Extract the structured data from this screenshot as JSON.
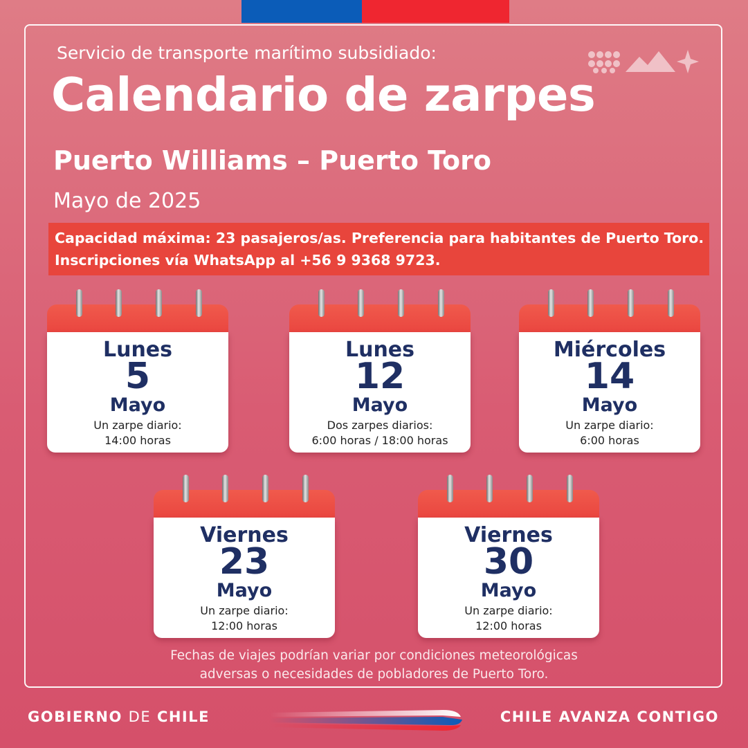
{
  "header": {
    "subtitle": "Servicio de transporte marítimo subsidiado:",
    "title": "Calendario de zarpes",
    "route": "Puerto Williams – Puerto Toro",
    "month": "Mayo de 2025"
  },
  "notice": {
    "line1": "Capacidad máxima: 23 pasajeros/as. Preferencia para habitantes de Puerto Toro.",
    "line2": "Inscripciones vía WhatsApp al +56 9 9368 9723."
  },
  "calendars": [
    {
      "day": "Lunes",
      "number": "5",
      "month": "Mayo",
      "trips": "Un zarpe diario:",
      "time": "14:00 horas"
    },
    {
      "day": "Lunes",
      "number": "12",
      "month": "Mayo",
      "trips": "Dos zarpes diarios:",
      "time": "6:00 horas / 18:00 horas"
    },
    {
      "day": "Miércoles",
      "number": "14",
      "month": "Mayo",
      "trips": "Un zarpe diario:",
      "time": "6:00 horas"
    },
    {
      "day": "Viernes",
      "number": "23",
      "month": "Mayo",
      "trips": "Un zarpe diario:",
      "time": "12:00 horas"
    },
    {
      "day": "Viernes",
      "number": "30",
      "month": "Mayo",
      "trips": "Un zarpe diario:",
      "time": "12:00 horas"
    }
  ],
  "footnote": {
    "line1": "Fechas de viajes podrían variar por condiciones meteorológicas",
    "line2": "adversas o necesidades de pobladores de Puerto Toro."
  },
  "footer": {
    "gob_word1": "GOBIERNO",
    "gob_word2": "DE",
    "gob_word3": "CHILE",
    "slogan": "CHILE AVANZA CONTIGO"
  },
  "colors": {
    "background": "#d95c73",
    "notice_bg": "#e8453c",
    "calendar_header": "#e8403c",
    "calendar_text": "#1f2f63",
    "flag_blue": "#0b5cb8",
    "flag_red": "#ef2630"
  }
}
